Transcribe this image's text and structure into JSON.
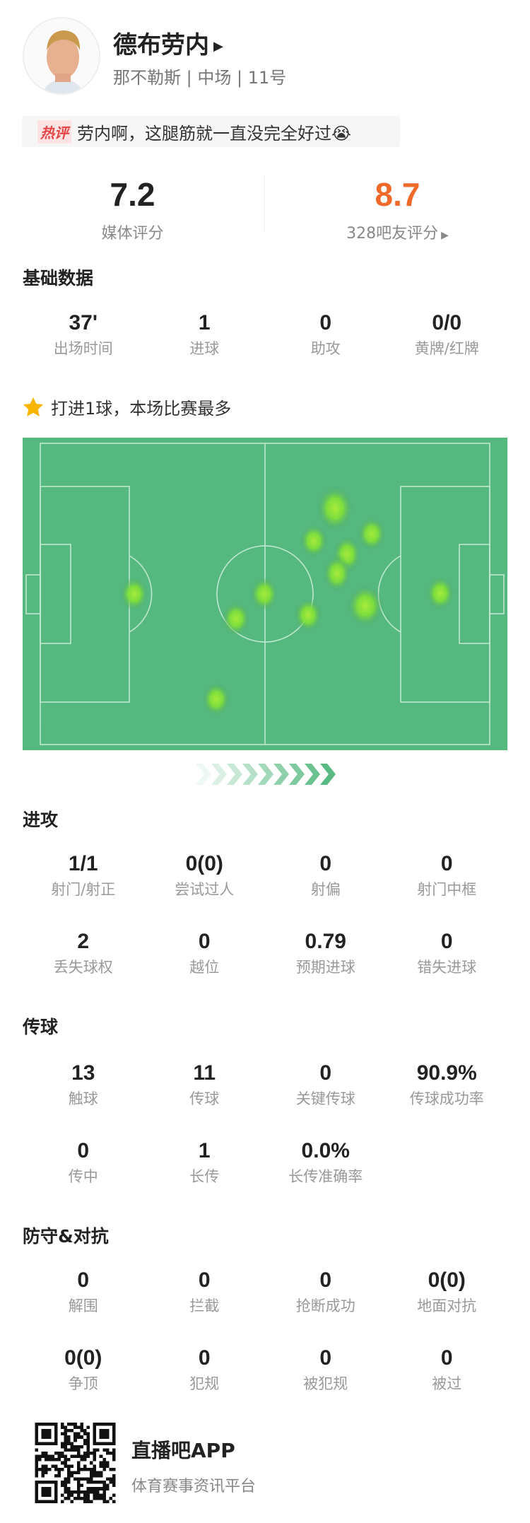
{
  "player": {
    "name": "德布劳内",
    "team": "那不勒斯",
    "position": "中场",
    "number": "11号",
    "separator": " | "
  },
  "hot_comment": {
    "tag": "热评",
    "text": "劳内啊，这腿筋就一直没完全好过😭"
  },
  "ratings": {
    "media": {
      "value": "7.2",
      "label": "媒体评分"
    },
    "fans": {
      "value": "8.7",
      "label": "328吧友评分",
      "color": "#ef6a2a"
    }
  },
  "basic": {
    "title": "基础数据",
    "items": [
      {
        "value": "37'",
        "label": "出场时间"
      },
      {
        "value": "1",
        "label": "进球"
      },
      {
        "value": "0",
        "label": "助攻"
      },
      {
        "value": "0/0",
        "label": "黄牌/红牌"
      }
    ]
  },
  "highlight": {
    "icon": "star-icon",
    "text": "打进1球，本场比赛最多"
  },
  "attack": {
    "title": "进攻",
    "items": [
      {
        "value": "1/1",
        "label": "射门/射正"
      },
      {
        "value": "0(0)",
        "label": "尝试过人"
      },
      {
        "value": "0",
        "label": "射偏"
      },
      {
        "value": "0",
        "label": "射门中框"
      },
      {
        "value": "2",
        "label": "丢失球权"
      },
      {
        "value": "0",
        "label": "越位"
      },
      {
        "value": "0.79",
        "label": "预期进球"
      },
      {
        "value": "0",
        "label": "错失进球"
      }
    ]
  },
  "passing": {
    "title": "传球",
    "items": [
      {
        "value": "13",
        "label": "触球"
      },
      {
        "value": "11",
        "label": "传球"
      },
      {
        "value": "0",
        "label": "关键传球"
      },
      {
        "value": "90.9%",
        "label": "传球成功率"
      },
      {
        "value": "0",
        "label": "传中"
      },
      {
        "value": "1",
        "label": "长传"
      },
      {
        "value": "0.0%",
        "label": "长传准确率"
      }
    ]
  },
  "defense": {
    "title": "防守&对抗",
    "items": [
      {
        "value": "0",
        "label": "解围"
      },
      {
        "value": "0",
        "label": "拦截"
      },
      {
        "value": "0",
        "label": "抢断成功"
      },
      {
        "value": "0(0)",
        "label": "地面对抗"
      },
      {
        "value": "0(0)",
        "label": "争顶"
      },
      {
        "value": "0",
        "label": "犯规"
      },
      {
        "value": "0",
        "label": "被犯规"
      },
      {
        "value": "0",
        "label": "被过"
      }
    ]
  },
  "footer": {
    "app": "直播吧APP",
    "slogan": "体育赛事资讯平台"
  },
  "colors": {
    "pitch": "#55b97f",
    "heat": "#8ee63a",
    "accent": "#ef6a2a"
  }
}
